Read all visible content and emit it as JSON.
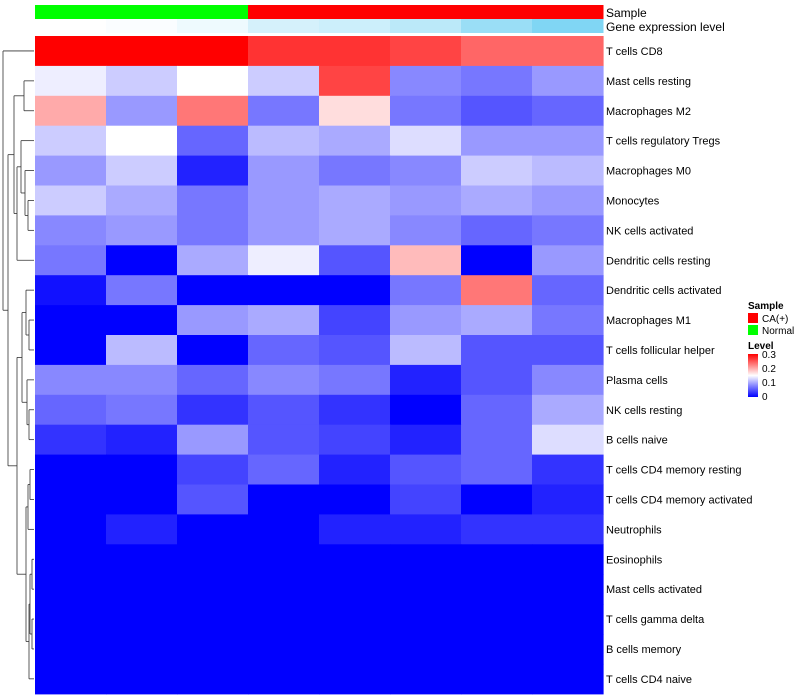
{
  "chart_data": {
    "type": "heatmap",
    "annotation_labels": [
      "Sample",
      "Gene expression level"
    ],
    "sample_groups": [
      "Normal",
      "Normal",
      "Normal",
      "CA(+)",
      "CA(+)",
      "CA(+)",
      "CA(+)",
      "CA(+)"
    ],
    "expression_levels": [
      0.0,
      0.03,
      0.1,
      0.25,
      0.3,
      0.4,
      0.6,
      0.75
    ],
    "rows": [
      "T cells CD8",
      "Mast cells resting",
      "Macrophages M2",
      "T cells regulatory  Tregs",
      "Macrophages M0",
      "Monocytes",
      "NK cells activated",
      "Dendritic cells resting",
      "Dendritic cells activated",
      "Macrophages M1",
      "T cells follicular helper",
      "Plasma cells",
      "NK cells resting",
      "B cells naive",
      "T cells CD4 memory resting",
      "T cells CD4 memory activated",
      "Neutrophils",
      "Eosinophils",
      "Mast cells activated",
      "T cells gamma delta",
      "B cells memory",
      "T cells CD4 naive"
    ],
    "values": [
      [
        0.3,
        0.3,
        0.3,
        0.27,
        0.27,
        0.26,
        0.24,
        0.24
      ],
      [
        0.14,
        0.12,
        0.15,
        0.12,
        0.26,
        0.08,
        0.07,
        0.09
      ],
      [
        0.2,
        0.09,
        0.23,
        0.07,
        0.17,
        0.07,
        0.05,
        0.06
      ],
      [
        0.12,
        0.15,
        0.06,
        0.11,
        0.1,
        0.13,
        0.09,
        0.09
      ],
      [
        0.09,
        0.12,
        0.02,
        0.09,
        0.07,
        0.08,
        0.12,
        0.11
      ],
      [
        0.12,
        0.1,
        0.07,
        0.09,
        0.1,
        0.09,
        0.1,
        0.09
      ],
      [
        0.08,
        0.09,
        0.07,
        0.09,
        0.1,
        0.08,
        0.06,
        0.07
      ],
      [
        0.07,
        0.0,
        0.1,
        0.14,
        0.05,
        0.19,
        0.0,
        0.09
      ],
      [
        0.01,
        0.07,
        0.0,
        0.0,
        0.0,
        0.07,
        0.23,
        0.06
      ],
      [
        0.0,
        0.0,
        0.09,
        0.1,
        0.04,
        0.09,
        0.1,
        0.07
      ],
      [
        0.0,
        0.11,
        0.0,
        0.06,
        0.05,
        0.11,
        0.05,
        0.05
      ],
      [
        0.08,
        0.08,
        0.06,
        0.08,
        0.07,
        0.02,
        0.05,
        0.08
      ],
      [
        0.06,
        0.07,
        0.03,
        0.05,
        0.03,
        0.0,
        0.06,
        0.1
      ],
      [
        0.03,
        0.02,
        0.09,
        0.05,
        0.04,
        0.02,
        0.06,
        0.13
      ],
      [
        0.0,
        0.0,
        0.04,
        0.06,
        0.02,
        0.05,
        0.06,
        0.03
      ],
      [
        0.0,
        0.0,
        0.05,
        0.0,
        0.0,
        0.04,
        0.0,
        0.02
      ],
      [
        0.0,
        0.02,
        0.0,
        0.0,
        0.02,
        0.02,
        0.03,
        0.03
      ],
      [
        0.0,
        0.0,
        0.0,
        0.0,
        0.0,
        0.0,
        0.0,
        0.0
      ],
      [
        0.0,
        0.0,
        0.0,
        0.0,
        0.0,
        0.0,
        0.0,
        0.0
      ],
      [
        0.0,
        0.0,
        0.0,
        0.0,
        0.0,
        0.0,
        0.0,
        0.0
      ],
      [
        0.0,
        0.0,
        0.0,
        0.0,
        0.0,
        0.0,
        0.0,
        0.0
      ],
      [
        0.0,
        0.0,
        0.0,
        0.0,
        0.0,
        0.0,
        0.0,
        0.0
      ]
    ],
    "value_range": [
      0,
      0.3
    ],
    "color_scale": [
      "#0000ff",
      "#ffffff",
      "#ff0000"
    ],
    "legend": {
      "sample_title": "Sample",
      "sample_entries": [
        {
          "label": "CA(+)",
          "color": "#ff0000"
        },
        {
          "label": "Normal",
          "color": "#00ff00"
        }
      ],
      "level_title": "Level",
      "level_ticks": [
        "0.3",
        "0.2",
        "0.1",
        "0"
      ]
    },
    "annotation_colors": {
      "CA(+)": "#ff0000",
      "Normal": "#00ff00",
      "expression_low": "#ffffff",
      "expression_high": "#56c8f0"
    },
    "dendrogram": "row clustering tree on left (heights not labeled)"
  }
}
